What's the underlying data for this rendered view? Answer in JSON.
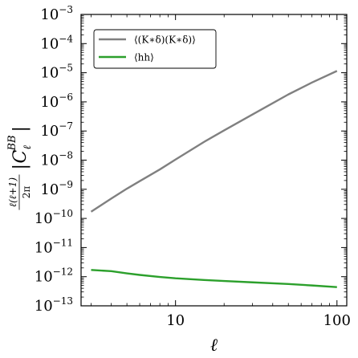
{
  "chart_data": {
    "type": "line",
    "title": "",
    "xlabel": "ℓ",
    "ylabel": {
      "prefix_numerator": "ℓ(ℓ+1)",
      "prefix_denominator": "2π",
      "symbol": "C",
      "subscript": "ℓ",
      "superscript": "BB"
    },
    "x_scale": "log",
    "y_scale": "log",
    "xlim": [
      2.6,
      115
    ],
    "ylim": [
      1e-13,
      0.001
    ],
    "x_ticks": [
      {
        "value": 10,
        "label": "10"
      },
      {
        "value": 100,
        "label": "100"
      }
    ],
    "y_ticks": [
      {
        "value": 0.001,
        "base": "10",
        "exp": "−3"
      },
      {
        "value": 0.0001,
        "base": "10",
        "exp": "−4"
      },
      {
        "value": 1e-05,
        "base": "10",
        "exp": "−5"
      },
      {
        "value": 1e-06,
        "base": "10",
        "exp": "−6"
      },
      {
        "value": 1e-07,
        "base": "10",
        "exp": "−7"
      },
      {
        "value": 1e-08,
        "base": "10",
        "exp": "−8"
      },
      {
        "value": 1e-09,
        "base": "10",
        "exp": "−9"
      },
      {
        "value": 1e-10,
        "base": "10",
        "exp": "−10"
      },
      {
        "value": 1e-11,
        "base": "10",
        "exp": "−11"
      },
      {
        "value": 1e-12,
        "base": "10",
        "exp": "−12"
      },
      {
        "value": 1e-13,
        "base": "10",
        "exp": "−13"
      }
    ],
    "legend_position": "top-left",
    "series": [
      {
        "name": "⟨(K∗δ)(K∗δ)⟩",
        "color": "#808080",
        "x": [
          3,
          4,
          5,
          6,
          8,
          10,
          15,
          20,
          30,
          50,
          70,
          100
        ],
        "y": [
          1.7e-10,
          4.8e-10,
          1.05e-09,
          1.9e-09,
          4.8e-09,
          1.05e-08,
          4.2e-08,
          1.05e-07,
          3.7e-07,
          1.8e-06,
          4.6e-06,
          1.15e-05
        ]
      },
      {
        "name": "⟨hh⟩",
        "color": "#2ca02c",
        "x": [
          3,
          4,
          5,
          6,
          8,
          10,
          15,
          20,
          30,
          50,
          70,
          100
        ],
        "y": [
          1.7e-12,
          1.55e-12,
          1.3e-12,
          1.15e-12,
          9.8e-13,
          8.8e-13,
          7.7e-13,
          7.1e-13,
          6.4e-13,
          5.6e-13,
          5e-13,
          4.4e-13
        ]
      }
    ]
  }
}
